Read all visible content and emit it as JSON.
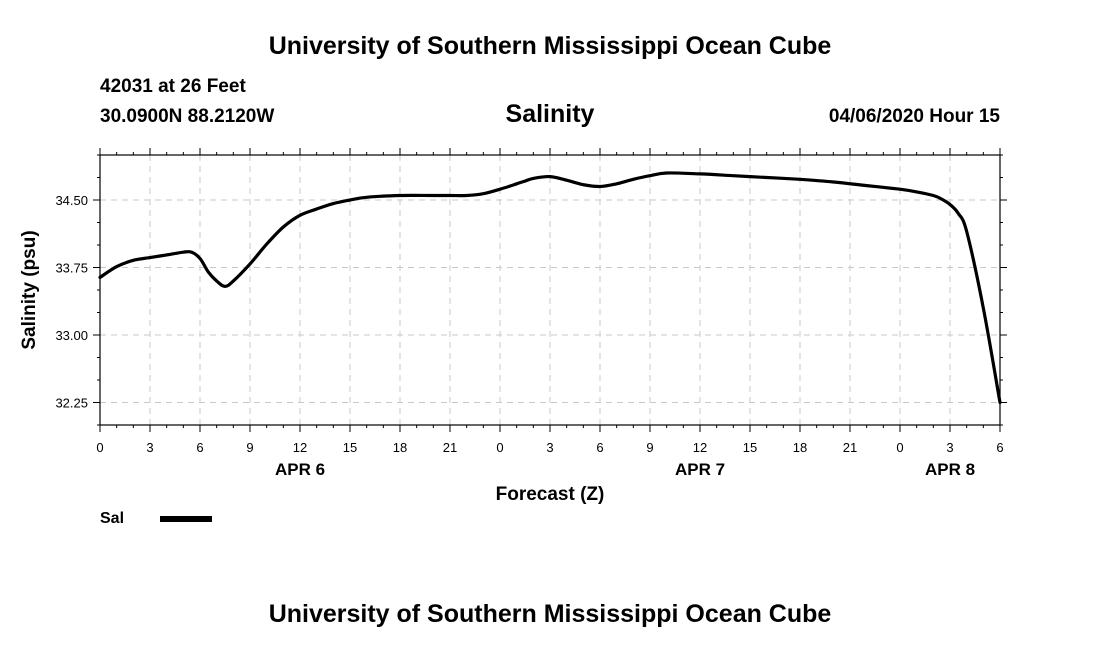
{
  "page": {
    "title_top": "University of Southern Mississippi Ocean Cube",
    "title_bottom": "University of Southern Mississippi Ocean Cube",
    "station": "42031 at 26 Feet",
    "coords": "30.0900N 88.2120W",
    "datetime": "04/06/2020 Hour 15"
  },
  "legend": {
    "label": "Sal",
    "color": "#000000"
  },
  "chart_data": {
    "type": "line",
    "title": "Salinity",
    "xlabel": "Forecast (Z)",
    "ylabel": "Salinity (psu)",
    "xlim": [
      0,
      54
    ],
    "ylim": [
      32.0,
      35.0
    ],
    "yticks": [
      32.25,
      33.0,
      33.75,
      34.5
    ],
    "ytick_labels": [
      "32.25",
      "33.00",
      "33.75",
      "34.50"
    ],
    "xticks": [
      0,
      3,
      6,
      9,
      12,
      15,
      18,
      21,
      24,
      27,
      30,
      33,
      36,
      39,
      42,
      45,
      48,
      51,
      54
    ],
    "xtick_labels": [
      "0",
      "3",
      "6",
      "9",
      "12",
      "15",
      "18",
      "21",
      "0",
      "3",
      "6",
      "9",
      "12",
      "15",
      "18",
      "21",
      "0",
      "3",
      "6"
    ],
    "date_labels": [
      {
        "x": 12,
        "label": "APR 6"
      },
      {
        "x": 36,
        "label": "APR 7"
      },
      {
        "x": 51,
        "label": "APR 8"
      }
    ],
    "grid": true,
    "series": [
      {
        "name": "Sal",
        "color": "#000000",
        "x": [
          0,
          1,
          2,
          3,
          4,
          5,
          5.5,
          6,
          6.5,
          7,
          7.5,
          8,
          9,
          10,
          11,
          12,
          13,
          14,
          15,
          16,
          18,
          20,
          21,
          22,
          23,
          24,
          25,
          25.5,
          26,
          27,
          28,
          29,
          30,
          31,
          32,
          33,
          34,
          36,
          38,
          40,
          42,
          44,
          46,
          48,
          49,
          50,
          50.5,
          51,
          51.5,
          52,
          53,
          54
        ],
        "values": [
          33.64,
          33.76,
          33.83,
          33.86,
          33.89,
          33.92,
          33.92,
          33.85,
          33.7,
          33.6,
          33.54,
          33.6,
          33.79,
          34.01,
          34.2,
          34.33,
          34.4,
          34.46,
          34.5,
          34.53,
          34.55,
          34.55,
          34.55,
          34.55,
          34.57,
          34.62,
          34.68,
          34.71,
          34.74,
          34.76,
          34.72,
          34.67,
          34.65,
          34.68,
          34.73,
          34.77,
          34.8,
          34.79,
          34.77,
          34.75,
          34.73,
          34.7,
          34.66,
          34.62,
          34.59,
          34.55,
          34.51,
          34.45,
          34.35,
          34.15,
          33.3,
          32.25
        ]
      }
    ]
  }
}
